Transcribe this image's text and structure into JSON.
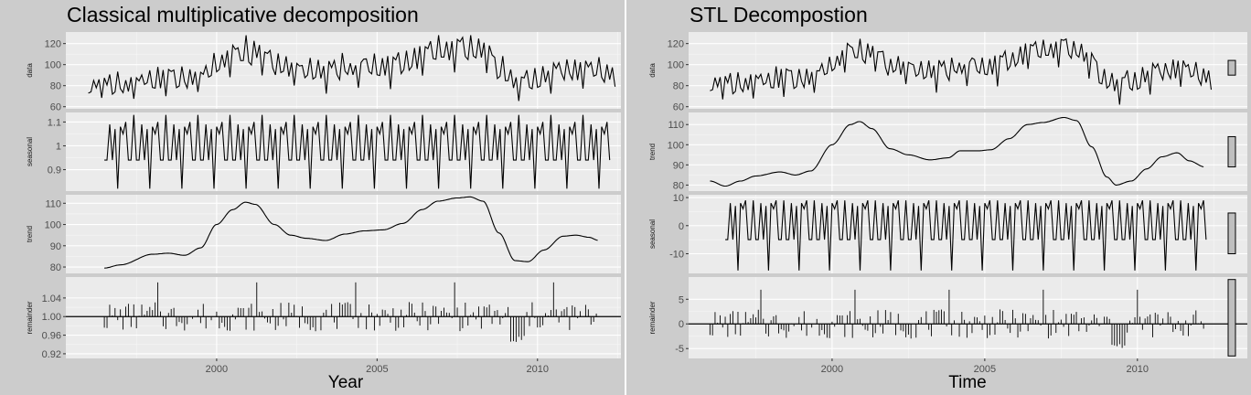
{
  "chart_data": [
    {
      "type": "line",
      "title": "Classical multiplicative decomposition",
      "xlabel": "Year",
      "x_ticks": [
        2000,
        2005,
        2010
      ],
      "xlim": [
        1995.3,
        2012.6
      ],
      "series_start": 1996.0,
      "frequency": 12,
      "facets": [
        {
          "name": "data",
          "ylim": [
            58,
            131
          ],
          "ticks": [
            60,
            80,
            100,
            120
          ],
          "profile": "data",
          "range": [
            62,
            128
          ]
        },
        {
          "name": "seasonal",
          "ylim": [
            0.81,
            1.14
          ],
          "ticks": [
            0.9,
            1.0,
            1.1
          ],
          "pattern": [
            0.94,
            0.94,
            1.09,
            0.94,
            1.07,
            0.82,
            1.08,
            1.05,
            1.1,
            0.94,
            0.94,
            1.13
          ]
        },
        {
          "name": "trend",
          "ylim": [
            77,
            114
          ],
          "ticks": [
            80,
            90,
            100,
            110
          ],
          "knots": [
            [
              1996.5,
              79.5
            ],
            [
              1997.0,
              81
            ],
            [
              1998.0,
              86
            ],
            [
              1998.5,
              86.5
            ],
            [
              1999.0,
              85.5
            ],
            [
              1999.5,
              89
            ],
            [
              2000.0,
              100
            ],
            [
              2000.5,
              107
            ],
            [
              2000.9,
              110.5
            ],
            [
              2001.2,
              109.5
            ],
            [
              2001.8,
              100
            ],
            [
              2002.3,
              95
            ],
            [
              2002.8,
              93.5
            ],
            [
              2003.4,
              92.5
            ],
            [
              2004.0,
              95.5
            ],
            [
              2004.6,
              97
            ],
            [
              2005.2,
              97.5
            ],
            [
              2005.8,
              100.5
            ],
            [
              2006.4,
              107
            ],
            [
              2006.9,
              111
            ],
            [
              2007.5,
              112.5
            ],
            [
              2007.9,
              113
            ],
            [
              2008.3,
              111
            ],
            [
              2008.8,
              96
            ],
            [
              2009.3,
              83
            ],
            [
              2009.7,
              82.5
            ],
            [
              2010.2,
              88
            ],
            [
              2010.8,
              94.5
            ],
            [
              2011.2,
              95
            ],
            [
              2011.6,
              94
            ],
            [
              2011.9,
              92.5
            ]
          ],
          "start": 1996.5,
          "end": 2011.9
        },
        {
          "name": "remainder",
          "ylim": [
            0.91,
            1.085
          ],
          "ticks": [
            0.92,
            0.96,
            1.0,
            1.04
          ],
          "ticks_text": [
            "0.92",
            "0.96",
            "1.00",
            "1.04"
          ],
          "baseline": 1.0,
          "start": 1996.5,
          "end": 2011.9
        }
      ]
    },
    {
      "type": "line",
      "title": "STL Decompostion",
      "xlabel": "Time",
      "x_ticks": [
        2000,
        2005,
        2010
      ],
      "xlim": [
        1995.3,
        2013.6
      ],
      "series_start": 1996.0,
      "frequency": 12,
      "facets": [
        {
          "name": "data",
          "ylim": [
            58,
            131
          ],
          "ticks": [
            60,
            80,
            100,
            120
          ],
          "profile": "data",
          "range": [
            62,
            128
          ],
          "bar": [
            90,
            104
          ]
        },
        {
          "name": "trend",
          "ylim": [
            77,
            116
          ],
          "ticks": [
            80,
            90,
            100,
            110
          ],
          "knots": [
            [
              1996.0,
              82
            ],
            [
              1996.5,
              79.5
            ],
            [
              1997.0,
              82
            ],
            [
              1997.5,
              84.5
            ],
            [
              1998.3,
              86.5
            ],
            [
              1998.8,
              85
            ],
            [
              1999.3,
              87
            ],
            [
              2000.0,
              100
            ],
            [
              2000.6,
              110
            ],
            [
              2000.9,
              111.5
            ],
            [
              2001.3,
              108
            ],
            [
              2001.9,
              98
            ],
            [
              2002.5,
              95
            ],
            [
              2003.2,
              92.5
            ],
            [
              2003.8,
              93.5
            ],
            [
              2004.2,
              97
            ],
            [
              2004.8,
              97
            ],
            [
              2005.2,
              97.5
            ],
            [
              2005.8,
              103
            ],
            [
              2006.4,
              110
            ],
            [
              2006.9,
              111
            ],
            [
              2007.6,
              113.5
            ],
            [
              2008.0,
              112
            ],
            [
              2008.5,
              99
            ],
            [
              2009.0,
              84
            ],
            [
              2009.3,
              80
            ],
            [
              2009.8,
              82
            ],
            [
              2010.3,
              88
            ],
            [
              2010.8,
              94
            ],
            [
              2011.3,
              96
            ],
            [
              2011.7,
              92
            ],
            [
              2012.2,
              89
            ]
          ],
          "start": 1996.0,
          "end": 2012.2,
          "bar": [
            89,
            104
          ]
        },
        {
          "name": "seasonal",
          "ylim": [
            -17,
            11
          ],
          "ticks": [
            -10,
            0,
            10
          ],
          "pattern": [
            -5,
            -5,
            8,
            -5,
            7,
            -16,
            8,
            6,
            9,
            -5,
            -5,
            9
          ],
          "bar": [
            -10,
            4.5
          ]
        },
        {
          "name": "remainder",
          "ylim": [
            -7,
            9.5
          ],
          "ticks": [
            -5,
            0,
            5
          ],
          "baseline": 0,
          "start": 1996.0,
          "end": 2012.2,
          "bar": [
            -6.5,
            9
          ]
        }
      ]
    }
  ]
}
